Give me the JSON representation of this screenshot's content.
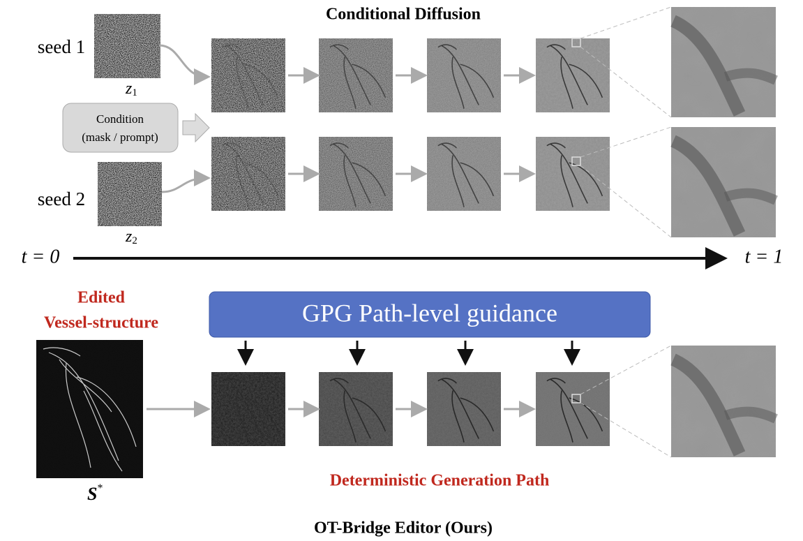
{
  "title": "Conditional Diffusion",
  "seeds": [
    {
      "label": "seed 1",
      "var": "z",
      "sub": "1"
    },
    {
      "label": "seed 2",
      "var": "z",
      "sub": "2"
    }
  ],
  "condition": {
    "line1": "Condition",
    "line2": "(mask / prompt)"
  },
  "timeline": {
    "start": "t = 0",
    "end": "t = 1"
  },
  "edited": {
    "line1": "Edited",
    "line2": "Vessel-structure",
    "symbol": "S",
    "sup": "*"
  },
  "guidance": "GPG Path-level guidance",
  "path_label": "Deterministic Generation Path",
  "footer": "OT-Bridge Editor (Ours)"
}
